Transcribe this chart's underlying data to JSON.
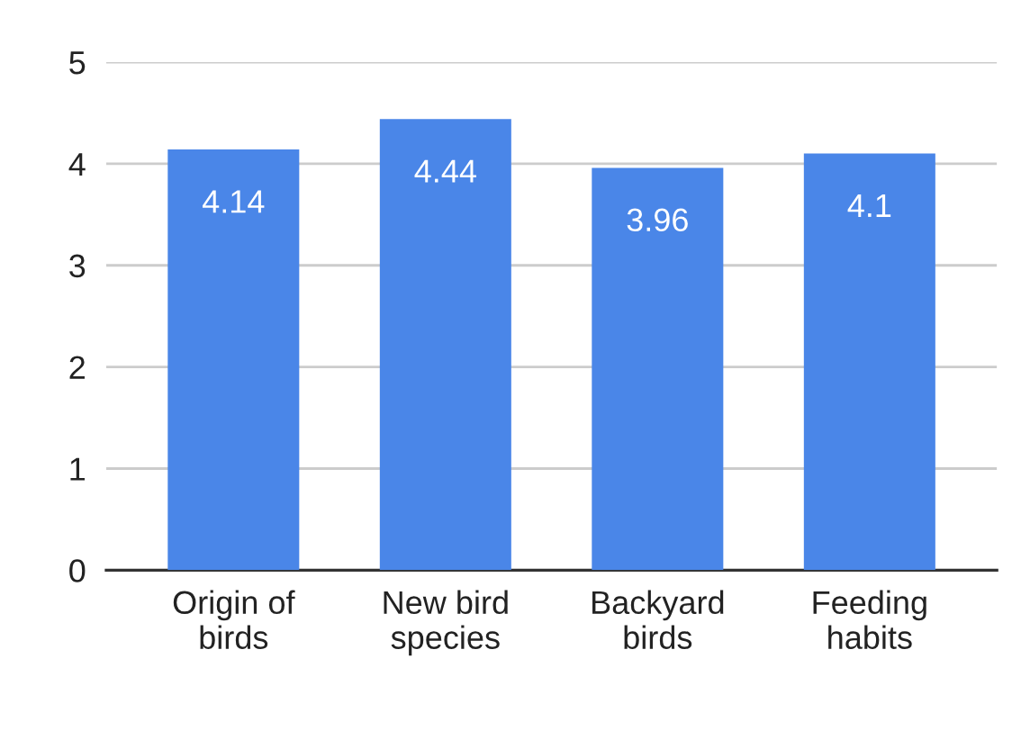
{
  "chart_data": {
    "type": "bar",
    "categories": [
      "Origin of\nbirds",
      "New bird\nspecies",
      "Backyard\nbirds",
      "Feeding\nhabits"
    ],
    "values": [
      4.14,
      4.44,
      3.96,
      4.1
    ],
    "color": "#4a86e8",
    "ylim": [
      0,
      5
    ],
    "yticks": [
      0,
      1,
      2,
      3,
      4,
      5
    ],
    "grid": "y",
    "data_labels": true
  }
}
